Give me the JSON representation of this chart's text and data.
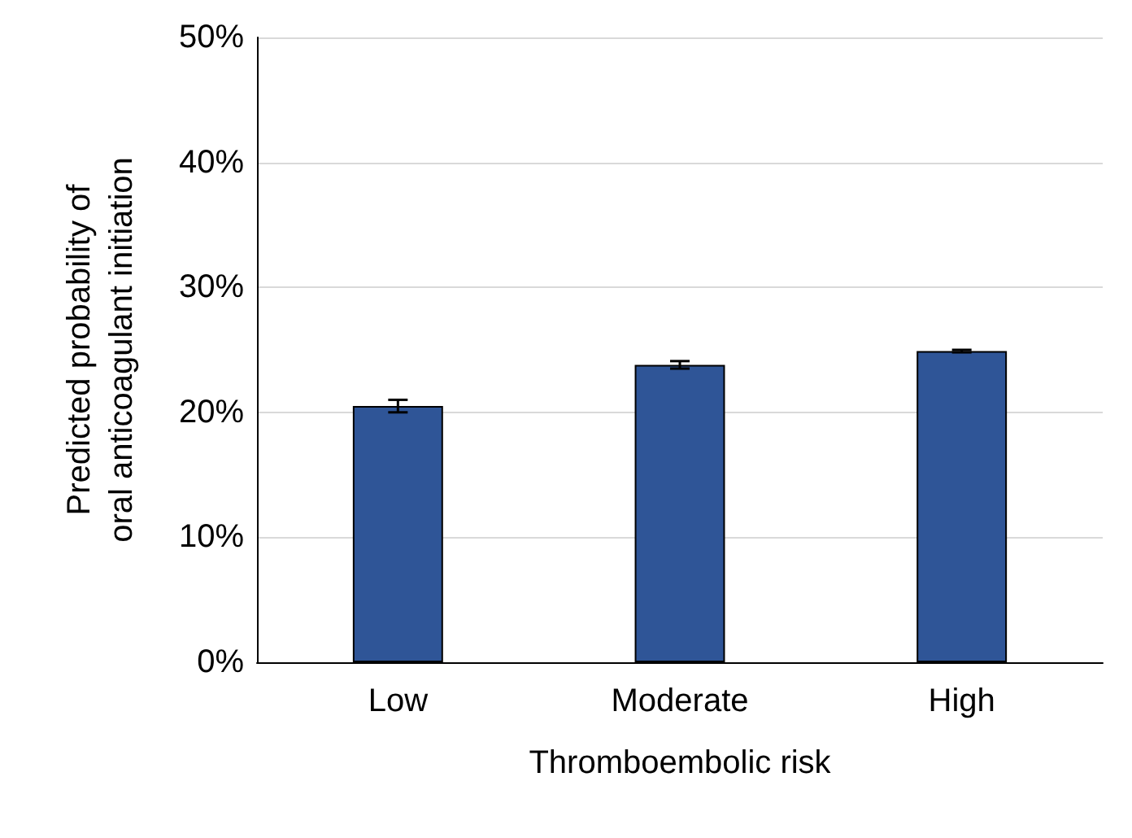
{
  "chart_data": {
    "type": "bar",
    "xlabel": "Thromboembolic risk",
    "ylabel": "Predicted probability of\noral anticoagulant initiation",
    "categories": [
      "Low",
      "Moderate",
      "High"
    ],
    "values": [
      20.5,
      23.8,
      24.9
    ],
    "errors": [
      0.5,
      0.3,
      0.1
    ],
    "color": "#2f5597",
    "ylim": [
      0,
      50
    ],
    "yticks": [
      {
        "value": 0,
        "label": "0%"
      },
      {
        "value": 10,
        "label": "10%"
      },
      {
        "value": 20,
        "label": "20%"
      },
      {
        "value": 30,
        "label": "30%"
      },
      {
        "value": 40,
        "label": "40%"
      },
      {
        "value": 50,
        "label": "50%"
      }
    ],
    "grid": "y"
  }
}
